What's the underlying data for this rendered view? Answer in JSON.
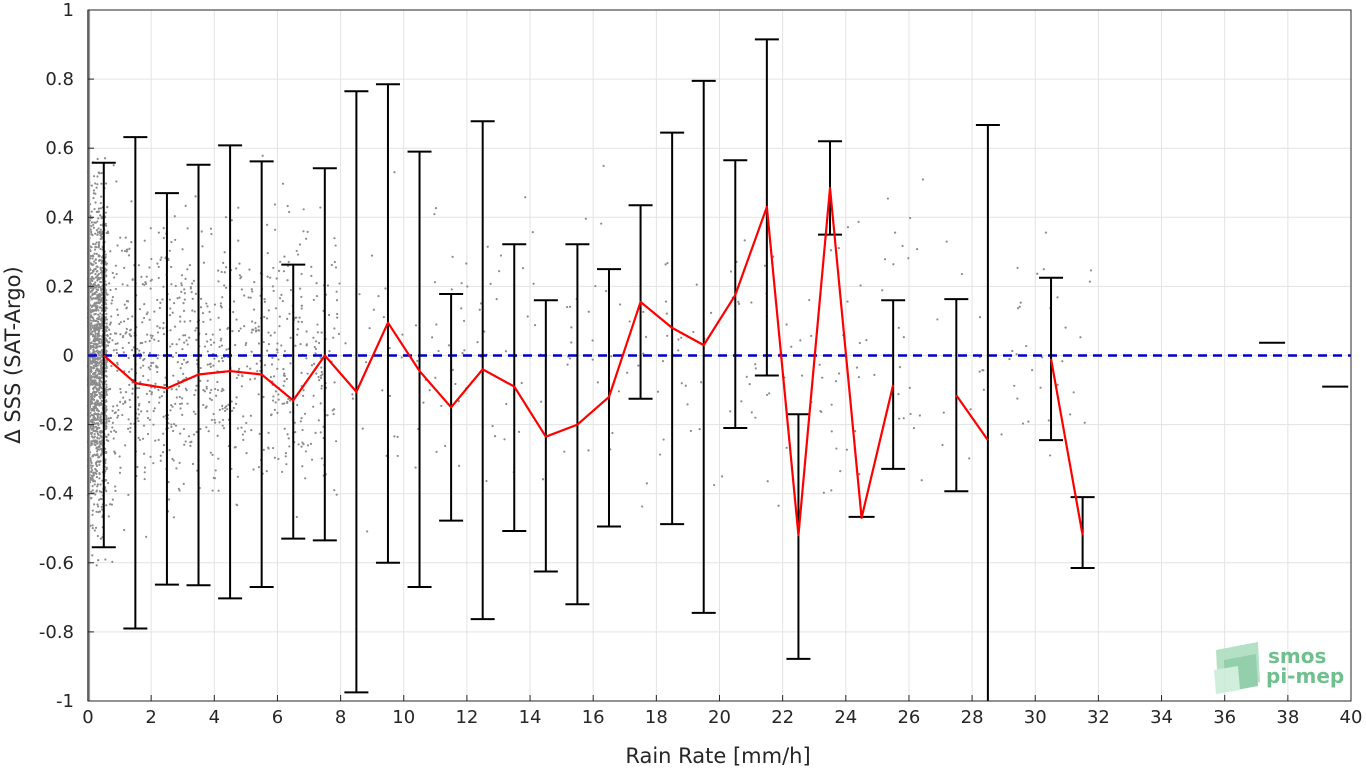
{
  "chart_data": {
    "type": "line",
    "xlabel": "Rain Rate [mm/h]",
    "ylabel": "Δ SSS (SAT-Argo)",
    "xlim": [
      0,
      40
    ],
    "ylim": [
      -1,
      1
    ],
    "xticks": [
      0,
      2,
      4,
      6,
      8,
      10,
      12,
      14,
      16,
      18,
      20,
      22,
      24,
      26,
      28,
      30,
      32,
      34,
      36,
      38,
      40
    ],
    "yticks": [
      -1,
      -0.8,
      -0.6,
      -0.4,
      -0.2,
      0,
      0.2,
      0.4,
      0.6,
      0.8,
      1
    ],
    "xtick_labels": [
      "0",
      "2",
      "4",
      "6",
      "8",
      "10",
      "12",
      "14",
      "16",
      "18",
      "20",
      "22",
      "24",
      "26",
      "28",
      "30",
      "32",
      "34",
      "36",
      "38",
      "40"
    ],
    "ytick_labels": [
      "-1",
      "-0.8",
      "-0.6",
      "-0.4",
      "-0.2",
      "0",
      "0.2",
      "0.4",
      "0.6",
      "0.8",
      "1"
    ],
    "grid": true,
    "reference_line": {
      "y": 0,
      "color": "#0000cc",
      "style": "dashed"
    },
    "mean_line_color": "#ff0000",
    "errorbar_color": "#000000",
    "scatter_color": "#8c8c8c",
    "mean_series": [
      {
        "x": 0.5,
        "y": 0.0
      },
      {
        "x": 1.5,
        "y": -0.08
      },
      {
        "x": 2.5,
        "y": -0.095
      },
      {
        "x": 3.5,
        "y": -0.055
      },
      {
        "x": 4.5,
        "y": -0.045
      },
      {
        "x": 5.5,
        "y": -0.055
      },
      {
        "x": 6.5,
        "y": -0.13
      },
      {
        "x": 7.5,
        "y": 0.0
      },
      {
        "x": 8.5,
        "y": -0.105
      },
      {
        "x": 9.5,
        "y": 0.095
      },
      {
        "x": 10.5,
        "y": -0.045
      },
      {
        "x": 11.5,
        "y": -0.15
      },
      {
        "x": 12.5,
        "y": -0.04
      },
      {
        "x": 13.5,
        "y": -0.09
      },
      {
        "x": 14.5,
        "y": -0.235
      },
      {
        "x": 15.5,
        "y": -0.2
      },
      {
        "x": 16.5,
        "y": -0.12
      },
      {
        "x": 17.5,
        "y": 0.155
      },
      {
        "x": 18.5,
        "y": 0.08
      },
      {
        "x": 19.5,
        "y": 0.03
      },
      {
        "x": 20.5,
        "y": 0.175
      },
      {
        "x": 21.5,
        "y": 0.43
      },
      {
        "x": 22.5,
        "y": -0.52
      },
      {
        "x": 23.5,
        "y": 0.485
      },
      {
        "x": 24.5,
        "y": -0.47
      },
      {
        "x": 25.5,
        "y": -0.085
      },
      {
        "x": 27.5,
        "y": -0.115
      },
      {
        "x": 28.5,
        "y": -0.245
      },
      {
        "x": 30.5,
        "y": -0.01
      },
      {
        "x": 31.5,
        "y": -0.52
      }
    ],
    "mean_segments": [
      [
        0.5,
        1.5,
        2.5,
        3.5,
        4.5,
        5.5,
        6.5,
        7.5,
        8.5,
        9.5,
        10.5,
        11.5,
        12.5,
        13.5,
        14.5,
        15.5,
        16.5,
        17.5,
        18.5,
        19.5,
        20.5,
        21.5,
        22.5,
        23.5,
        24.5,
        25.5
      ],
      [
        27.5,
        28.5
      ],
      [
        30.5,
        31.5
      ]
    ],
    "error_bars": [
      {
        "x": 0.5,
        "low": -0.555,
        "high": 0.558
      },
      {
        "x": 1.5,
        "low": -0.79,
        "high": 0.632
      },
      {
        "x": 2.5,
        "low": -0.663,
        "high": 0.47
      },
      {
        "x": 3.5,
        "low": -0.665,
        "high": 0.552
      },
      {
        "x": 4.5,
        "low": -0.703,
        "high": 0.608
      },
      {
        "x": 5.5,
        "low": -0.67,
        "high": 0.562
      },
      {
        "x": 6.5,
        "low": -0.53,
        "high": 0.263
      },
      {
        "x": 7.5,
        "low": -0.535,
        "high": 0.542
      },
      {
        "x": 8.5,
        "low": -0.975,
        "high": 0.765
      },
      {
        "x": 9.5,
        "low": -0.6,
        "high": 0.785
      },
      {
        "x": 10.5,
        "low": -0.67,
        "high": 0.59
      },
      {
        "x": 11.5,
        "low": -0.478,
        "high": 0.178
      },
      {
        "x": 12.5,
        "low": -0.763,
        "high": 0.678
      },
      {
        "x": 13.5,
        "low": -0.508,
        "high": 0.322
      },
      {
        "x": 14.5,
        "low": -0.625,
        "high": 0.16
      },
      {
        "x": 15.5,
        "low": -0.72,
        "high": 0.322
      },
      {
        "x": 16.5,
        "low": -0.495,
        "high": 0.25
      },
      {
        "x": 17.5,
        "low": -0.125,
        "high": 0.435
      },
      {
        "x": 18.5,
        "low": -0.488,
        "high": 0.645
      },
      {
        "x": 19.5,
        "low": -0.745,
        "high": 0.795
      },
      {
        "x": 20.5,
        "low": -0.21,
        "high": 0.565
      },
      {
        "x": 21.5,
        "low": -0.058,
        "high": 0.915
      },
      {
        "x": 22.5,
        "low": -0.878,
        "high": -0.17
      },
      {
        "x": 23.5,
        "low": 0.35,
        "high": 0.62
      },
      {
        "x": 24.5,
        "low": -0.467,
        "high": -0.467
      },
      {
        "x": 25.5,
        "low": -0.328,
        "high": 0.16
      },
      {
        "x": 27.5,
        "low": -0.393,
        "high": 0.163
      },
      {
        "x": 28.5,
        "low": -1.0,
        "high": 0.667
      },
      {
        "x": 30.5,
        "low": -0.245,
        "high": 0.225
      },
      {
        "x": 31.5,
        "low": -0.615,
        "high": -0.41
      },
      {
        "x": 37.5,
        "low": 0.037,
        "high": 0.037
      },
      {
        "x": 39.5,
        "low": -0.09,
        "high": -0.09
      }
    ]
  },
  "watermark": {
    "line1": "smos",
    "line2": "pi-mep",
    "color": "#6fbf8f"
  }
}
